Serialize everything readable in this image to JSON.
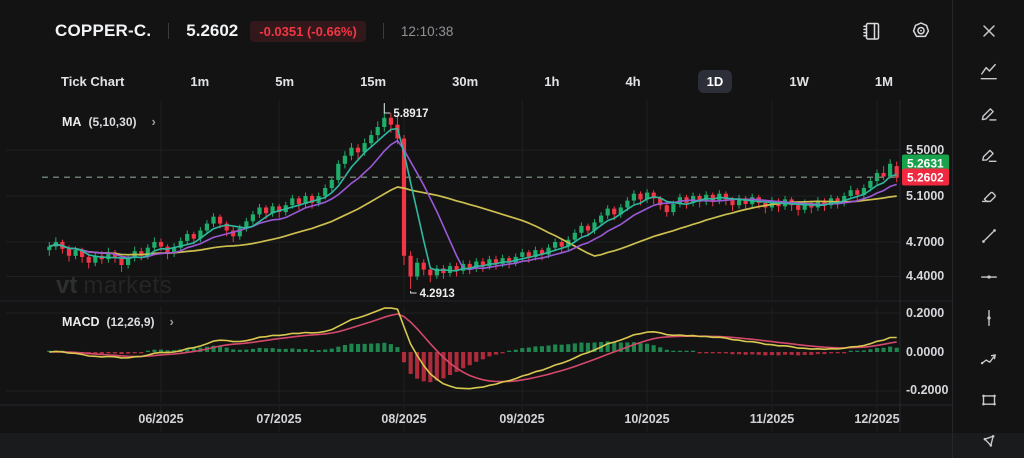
{
  "header": {
    "symbol": "COPPER-C.",
    "price": "5.2602",
    "change": "-0.0351 (-0.66%)",
    "time": "12:10:38"
  },
  "timeframes": {
    "items": [
      "Tick Chart",
      "1m",
      "5m",
      "15m",
      "30m",
      "1h",
      "4h",
      "1D",
      "1W",
      "1M"
    ],
    "selected": "1D"
  },
  "ma_legend": {
    "name": "MA",
    "params": "(5,10,30)",
    "chevron": "›"
  },
  "macd_legend": {
    "name": "MACD",
    "params": "(12,26,9)",
    "chevron": "›"
  },
  "watermark": {
    "bold": "vt",
    "light": "markets"
  },
  "price_axis": {
    "labels": [
      "5.5000",
      "5.1000",
      "4.7000",
      "4.4000"
    ],
    "ask_badge": "5.2631",
    "last_badge": "5.2602"
  },
  "macd_axis": {
    "labels": [
      "0.2000",
      "0.0000",
      "-0.2000"
    ]
  },
  "time_axis": {
    "labels": [
      "06/2025",
      "07/2025",
      "08/2025",
      "09/2025",
      "10/2025",
      "11/2025",
      "12/2025"
    ]
  },
  "annotations": {
    "high": "5.8917",
    "low": "4.2913"
  },
  "sidebar_tools": [
    "close",
    "indicators",
    "pencil",
    "marker",
    "eraser",
    "trend-line",
    "horizontal-line",
    "vertical-line",
    "wave",
    "rectangle",
    "polygon"
  ],
  "colors": {
    "up": "#1fae6a",
    "down": "#f23645",
    "badge_up": "#17a24b",
    "badge_down": "#f02940",
    "ma5": "#2fb9a0",
    "ma10": "#9b59d6",
    "ma30": "#cdbf4e",
    "macd_line": "#d8c84f",
    "macd_signal": "#d4496b",
    "hist_up": "#1f8f55",
    "hist_down": "#bb2e3f",
    "dashed_price_line": "#6b7b6e",
    "grid": "#1e1f22",
    "change_red": "#f23645"
  },
  "chart_data": {
    "type": "candlestick",
    "title": "COPPER-C. 1D with MA(5,10,30) and MACD(12,26,9)",
    "y_axis": {
      "ticks": [
        5.5,
        5.1,
        4.7,
        4.4
      ],
      "badge_ask": 5.2631,
      "badge_last": 5.2602
    },
    "macd_axis_ticks": [
      0.2,
      0.0,
      -0.2
    ],
    "x_month_labels": [
      "06/2025",
      "07/2025",
      "08/2025",
      "09/2025",
      "10/2025",
      "11/2025",
      "12/2025"
    ],
    "month_tick_indices": [
      17,
      35,
      54,
      72,
      91,
      110,
      126
    ],
    "high_value": 5.8917,
    "high_index": 51,
    "low_value": 4.2913,
    "low_index": 55,
    "last_price": 5.2602,
    "ma_periods": [
      5,
      10,
      30
    ],
    "macd_params": [
      12,
      26,
      9
    ],
    "candles": [
      [
        4.63,
        4.7,
        4.58,
        4.66
      ],
      [
        4.66,
        4.74,
        4.63,
        4.7
      ],
      [
        4.7,
        4.72,
        4.6,
        4.64
      ],
      [
        4.64,
        4.67,
        4.53,
        4.58
      ],
      [
        4.58,
        4.66,
        4.55,
        4.63
      ],
      [
        4.63,
        4.65,
        4.52,
        4.57
      ],
      [
        4.57,
        4.6,
        4.47,
        4.52
      ],
      [
        4.52,
        4.61,
        4.49,
        4.58
      ],
      [
        4.58,
        4.62,
        4.51,
        4.55
      ],
      [
        4.55,
        4.65,
        4.52,
        4.61
      ],
      [
        4.61,
        4.63,
        4.52,
        4.56
      ],
      [
        4.56,
        4.58,
        4.44,
        4.5
      ],
      [
        4.5,
        4.59,
        4.47,
        4.56
      ],
      [
        4.56,
        4.66,
        4.53,
        4.62
      ],
      [
        4.62,
        4.65,
        4.54,
        4.58
      ],
      [
        4.58,
        4.68,
        4.55,
        4.65
      ],
      [
        4.65,
        4.74,
        4.62,
        4.7
      ],
      [
        4.7,
        4.73,
        4.62,
        4.66
      ],
      [
        4.66,
        4.68,
        4.55,
        4.6
      ],
      [
        4.6,
        4.69,
        4.57,
        4.65
      ],
      [
        4.65,
        4.74,
        4.62,
        4.71
      ],
      [
        4.71,
        4.8,
        4.68,
        4.77
      ],
      [
        4.77,
        4.79,
        4.68,
        4.73
      ],
      [
        4.73,
        4.83,
        4.7,
        4.8
      ],
      [
        4.8,
        4.89,
        4.77,
        4.86
      ],
      [
        4.86,
        4.95,
        4.83,
        4.92
      ],
      [
        4.92,
        4.94,
        4.82,
        4.86
      ],
      [
        4.86,
        4.88,
        4.75,
        4.8
      ],
      [
        4.8,
        4.83,
        4.7,
        4.75
      ],
      [
        4.75,
        4.85,
        4.72,
        4.82
      ],
      [
        4.82,
        4.91,
        4.79,
        4.88
      ],
      [
        4.88,
        4.97,
        4.85,
        4.94
      ],
      [
        4.94,
        5.03,
        4.91,
        5.0
      ],
      [
        5.0,
        5.02,
        4.9,
        4.95
      ],
      [
        4.95,
        5.04,
        4.92,
        5.01
      ],
      [
        5.01,
        5.03,
        4.91,
        4.96
      ],
      [
        4.96,
        5.05,
        4.93,
        5.02
      ],
      [
        5.02,
        5.11,
        4.99,
        5.08
      ],
      [
        5.08,
        5.1,
        4.98,
        5.03
      ],
      [
        5.03,
        5.13,
        5.0,
        5.1
      ],
      [
        5.1,
        5.12,
        4.99,
        5.04
      ],
      [
        5.04,
        5.13,
        5.01,
        5.1
      ],
      [
        5.1,
        5.2,
        5.07,
        5.17
      ],
      [
        5.17,
        5.27,
        5.14,
        5.24
      ],
      [
        5.24,
        5.41,
        5.21,
        5.38
      ],
      [
        5.38,
        5.49,
        5.34,
        5.45
      ],
      [
        5.45,
        5.56,
        5.41,
        5.52
      ],
      [
        5.52,
        5.55,
        5.42,
        5.48
      ],
      [
        5.48,
        5.6,
        5.45,
        5.56
      ],
      [
        5.56,
        5.67,
        5.52,
        5.63
      ],
      [
        5.63,
        5.75,
        5.59,
        5.7
      ],
      [
        5.7,
        5.8917,
        5.66,
        5.78
      ],
      [
        5.78,
        5.82,
        5.65,
        5.72
      ],
      [
        5.72,
        5.8,
        5.55,
        5.6
      ],
      [
        5.6,
        5.63,
        4.5,
        4.58
      ],
      [
        4.58,
        4.62,
        4.2913,
        4.4
      ],
      [
        4.4,
        4.56,
        4.37,
        4.52
      ],
      [
        4.52,
        4.55,
        4.41,
        4.46
      ],
      [
        4.46,
        4.49,
        4.35,
        4.41
      ],
      [
        4.41,
        4.5,
        4.38,
        4.47
      ],
      [
        4.47,
        4.5,
        4.38,
        4.43
      ],
      [
        4.43,
        4.52,
        4.4,
        4.49
      ],
      [
        4.49,
        4.52,
        4.4,
        4.45
      ],
      [
        4.45,
        4.54,
        4.42,
        4.51
      ],
      [
        4.51,
        4.54,
        4.42,
        4.47
      ],
      [
        4.47,
        4.56,
        4.44,
        4.53
      ],
      [
        4.53,
        4.56,
        4.44,
        4.49
      ],
      [
        4.49,
        4.58,
        4.46,
        4.55
      ],
      [
        4.55,
        4.58,
        4.46,
        4.51
      ],
      [
        4.51,
        4.59,
        4.48,
        4.56
      ],
      [
        4.56,
        4.58,
        4.47,
        4.52
      ],
      [
        4.52,
        4.6,
        4.49,
        4.57
      ],
      [
        4.57,
        4.64,
        4.54,
        4.61
      ],
      [
        4.61,
        4.63,
        4.52,
        4.57
      ],
      [
        4.57,
        4.66,
        4.54,
        4.63
      ],
      [
        4.63,
        4.65,
        4.54,
        4.59
      ],
      [
        4.59,
        4.68,
        4.56,
        4.65
      ],
      [
        4.65,
        4.73,
        4.62,
        4.7
      ],
      [
        4.7,
        4.72,
        4.61,
        4.66
      ],
      [
        4.66,
        4.75,
        4.63,
        4.72
      ],
      [
        4.72,
        4.81,
        4.69,
        4.78
      ],
      [
        4.78,
        4.87,
        4.75,
        4.84
      ],
      [
        4.84,
        4.86,
        4.75,
        4.8
      ],
      [
        4.8,
        4.9,
        4.77,
        4.87
      ],
      [
        4.87,
        4.96,
        4.84,
        4.93
      ],
      [
        4.93,
        5.02,
        4.9,
        4.99
      ],
      [
        4.99,
        5.01,
        4.89,
        4.94
      ],
      [
        4.94,
        5.03,
        4.91,
        5.0
      ],
      [
        5.0,
        5.09,
        4.97,
        5.06
      ],
      [
        5.06,
        5.15,
        5.03,
        5.12
      ],
      [
        5.12,
        5.14,
        5.02,
        5.07
      ],
      [
        5.07,
        5.16,
        5.04,
        5.13
      ],
      [
        5.13,
        5.15,
        5.03,
        5.08
      ],
      [
        5.08,
        5.1,
        4.98,
        5.02
      ],
      [
        5.02,
        5.05,
        4.92,
        4.96
      ],
      [
        4.96,
        5.06,
        4.93,
        5.03
      ],
      [
        5.03,
        5.12,
        5.0,
        5.09
      ],
      [
        5.09,
        5.11,
        4.99,
        5.04
      ],
      [
        5.04,
        5.13,
        5.01,
        5.1
      ],
      [
        5.1,
        5.12,
        5.0,
        5.05
      ],
      [
        5.05,
        5.14,
        5.02,
        5.11
      ],
      [
        5.11,
        5.13,
        5.01,
        5.06
      ],
      [
        5.06,
        5.15,
        5.03,
        5.12
      ],
      [
        5.12,
        5.14,
        5.02,
        5.07
      ],
      [
        5.07,
        5.09,
        4.97,
        5.02
      ],
      [
        5.02,
        5.11,
        4.99,
        5.08
      ],
      [
        5.08,
        5.1,
        4.98,
        5.03
      ],
      [
        5.03,
        5.12,
        5.0,
        5.09
      ],
      [
        5.09,
        5.11,
        4.99,
        5.04
      ],
      [
        5.04,
        5.07,
        4.95,
        5.0
      ],
      [
        5.0,
        5.09,
        4.97,
        5.06
      ],
      [
        5.06,
        5.08,
        4.96,
        5.01
      ],
      [
        5.01,
        5.1,
        4.98,
        5.07
      ],
      [
        5.07,
        5.09,
        4.97,
        5.02
      ],
      [
        5.02,
        5.04,
        4.93,
        4.98
      ],
      [
        4.98,
        5.07,
        4.95,
        5.04
      ],
      [
        5.04,
        5.06,
        4.95,
        5.0
      ],
      [
        5.0,
        5.09,
        4.97,
        5.06
      ],
      [
        5.06,
        5.08,
        4.97,
        5.02
      ],
      [
        5.02,
        5.11,
        4.99,
        5.08
      ],
      [
        5.08,
        5.1,
        4.99,
        5.04
      ],
      [
        5.04,
        5.13,
        5.01,
        5.1
      ],
      [
        5.1,
        5.19,
        5.07,
        5.15
      ],
      [
        5.15,
        5.17,
        5.06,
        5.11
      ],
      [
        5.11,
        5.2,
        5.08,
        5.17
      ],
      [
        5.17,
        5.26,
        5.14,
        5.23
      ],
      [
        5.23,
        5.33,
        5.2,
        5.3
      ],
      [
        5.3,
        5.36,
        5.24,
        5.27
      ],
      [
        5.27,
        5.42,
        5.25,
        5.38
      ],
      [
        5.36,
        5.4,
        5.22,
        5.2602
      ]
    ]
  }
}
